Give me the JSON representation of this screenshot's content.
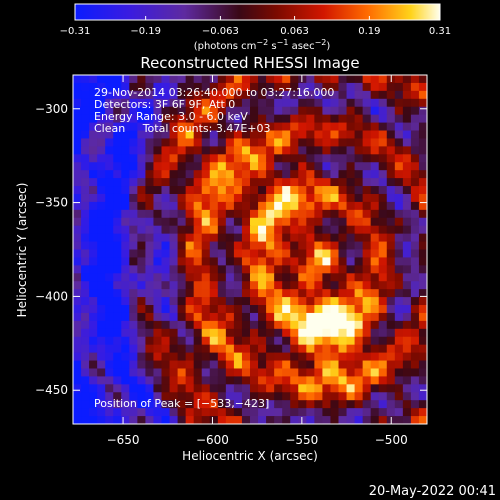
{
  "chart_data": {
    "type": "heatmap",
    "title": "Reconstructed RHESSI Image",
    "xlabel": "Heliocentric X (arcsec)",
    "ylabel": "Heliocentric Y (arcsec)",
    "xlim": [
      -678,
      -480
    ],
    "ylim": [
      -468,
      -282
    ],
    "xticks": [
      -650,
      -600,
      -550,
      -500
    ],
    "yticks": [
      -300,
      -350,
      -400,
      -450
    ],
    "xtick_labels": [
      "−650",
      "−600",
      "−550",
      "−500"
    ],
    "ytick_labels": [
      "−300",
      "−350",
      "−400",
      "−450"
    ],
    "colorbar": {
      "min": -0.31,
      "max": 0.31,
      "ticks": [
        -0.31,
        -0.19,
        -0.063,
        0.063,
        0.19,
        0.31
      ],
      "tick_labels": [
        "−0.31",
        "−0.19",
        "−0.063",
        "0.063",
        "0.19",
        "0.31"
      ],
      "label_parts": [
        "(photons cm",
        "−2",
        " s",
        "−1",
        " asec",
        "−2",
        ")"
      ]
    },
    "annotations": [
      "29-Nov-2014 03:26:40.000 to 03:27:16.000",
      "Detectors: 3F 6F 9F, Att 0",
      "Energy Range: 3.0 - 6.0 keV",
      "Clean     Total counts: 3.47E+03"
    ],
    "peak": {
      "x": -533,
      "y": -423
    },
    "peak_label": "Position of Peak = [−533,−423]",
    "grid": false
  },
  "timestamp": "20-May-2022 00:41"
}
